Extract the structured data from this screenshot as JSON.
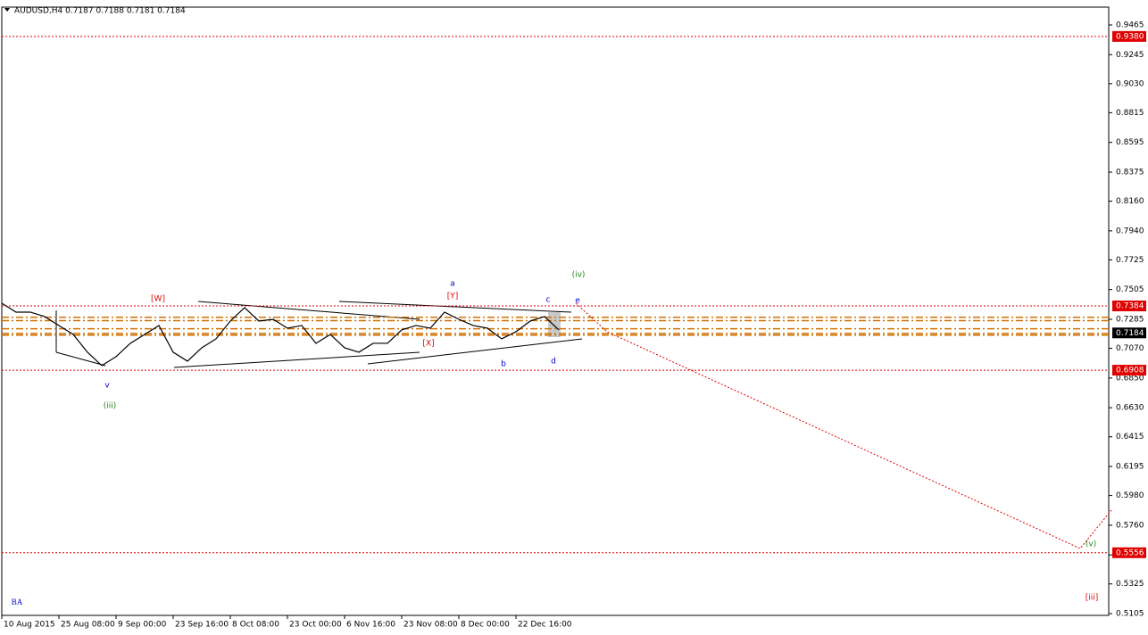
{
  "chart_data": {
    "type": "line",
    "title": "AUDUSD,H4  0.7187 0.7188 0.7181 0.7184",
    "categories": [
      "10 Aug 2015",
      null,
      null,
      null,
      "25 Aug 08:00",
      null,
      null,
      null,
      "9 Sep 00:00",
      null,
      null,
      null,
      "23 Sep 16:00",
      null,
      null,
      null,
      "8 Oct 08:00",
      null,
      null,
      null,
      "23 Oct 00:00",
      null,
      null,
      null,
      "6 Nov 16:00",
      null,
      null,
      null,
      "23 Nov 08:00",
      null,
      null,
      null,
      "8 Dec 00:00",
      null,
      null,
      null,
      "22 Dec 16:00",
      null,
      null,
      null
    ],
    "series": [
      {
        "name": "AUDUSD",
        "color": "#000000",
        "values": [
          0.7404,
          0.7338,
          0.7338,
          0.7305,
          0.7239,
          0.7173,
          0.7041,
          0.6942,
          0.7008,
          0.7107,
          0.7173,
          0.7239,
          0.7041,
          0.6975,
          0.7074,
          0.714,
          0.7272,
          0.7371,
          0.7272,
          0.7285,
          0.7219,
          0.7239,
          0.7107,
          0.7173,
          0.7074,
          0.7041,
          0.7107,
          0.7107,
          0.7206,
          0.7239,
          0.7219,
          0.7338,
          0.7285,
          0.7239,
          0.7219,
          0.714,
          0.7193,
          0.7272,
          0.7305,
          0.7206
        ]
      }
    ],
    "ylim": [
      0.5092,
      0.9597
    ],
    "yticks": [
      {
        "value": 0.9465,
        "label": "0.9465"
      },
      {
        "value": 0.9245,
        "label": "0.9245"
      },
      {
        "value": 0.903,
        "label": "0.9030"
      },
      {
        "value": 0.8815,
        "label": "0.8815"
      },
      {
        "value": 0.8595,
        "label": "0.8595"
      },
      {
        "value": 0.8375,
        "label": "0.8375"
      },
      {
        "value": 0.816,
        "label": "0.8160"
      },
      {
        "value": 0.794,
        "label": "0.7940"
      },
      {
        "value": 0.7725,
        "label": "0.7725"
      },
      {
        "value": 0.7505,
        "label": "0.7505"
      },
      {
        "value": 0.7285,
        "label": "0.7285"
      },
      {
        "value": 0.707,
        "label": "0.7070"
      },
      {
        "value": 0.685,
        "label": "0.6850"
      },
      {
        "value": 0.663,
        "label": "0.6630"
      },
      {
        "value": 0.6415,
        "label": "0.6415"
      },
      {
        "value": 0.6195,
        "label": "0.6195"
      },
      {
        "value": 0.598,
        "label": "0.5980"
      },
      {
        "value": 0.576,
        "label": "0.5760"
      },
      {
        "value": 0.554,
        "label": "0.5540"
      },
      {
        "value": 0.5325,
        "label": "0.5325"
      },
      {
        "value": 0.5105,
        "label": "0.5105"
      }
    ],
    "levels": [
      {
        "value": 0.938,
        "label": "0.9380",
        "color": "#e00000"
      },
      {
        "value": 0.7384,
        "label": "0.7384",
        "color": "#e00000"
      },
      {
        "value": 0.6908,
        "label": "0.6908",
        "color": "#e00000"
      },
      {
        "value": 0.5556,
        "label": "0.5556",
        "color": "#e00000"
      }
    ],
    "current_price": {
      "value": 0.7184,
      "label": "0.7184",
      "color": "#000000"
    },
    "fib_levels": [
      0.73,
      0.7275,
      0.7215,
      0.718,
      0.7168
    ],
    "fib_color": "#d07000",
    "annotations": [
      {
        "text": "v",
        "color": "#0000cc"
      },
      {
        "text": "(iii)",
        "color": "#1a8a1a"
      },
      {
        "text": "[W]",
        "color": "#e00000"
      },
      {
        "text": "a",
        "color": "#0000cc"
      },
      {
        "text": "[Y]",
        "color": "#e00000"
      },
      {
        "text": "[X]",
        "color": "#e00000"
      },
      {
        "text": "b",
        "color": "#0000cc"
      },
      {
        "text": "c",
        "color": "#0000cc"
      },
      {
        "text": "d",
        "color": "#0000cc"
      },
      {
        "text": "e",
        "color": "#0000cc"
      },
      {
        "text": "(iv)",
        "color": "#1a8a1a"
      },
      {
        "text": "(v)",
        "color": "#1a8a1a"
      },
      {
        "text": "[iii]",
        "color": "#e00000"
      },
      {
        "text": "BA",
        "color": "#0000cc"
      }
    ]
  }
}
